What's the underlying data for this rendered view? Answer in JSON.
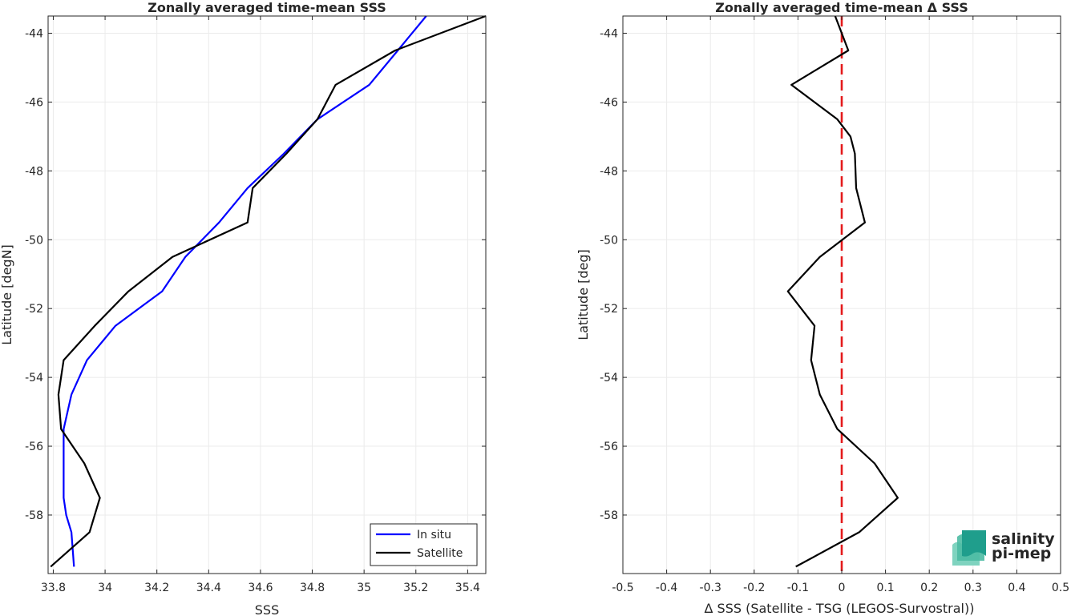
{
  "chart_data": [
    {
      "type": "line",
      "title": "Zonally averaged time-mean SSS",
      "xlabel": "SSS",
      "ylabel": "Latitude [degN]",
      "xlim": [
        33.78,
        35.47
      ],
      "ylim": [
        -59.7,
        -43.5
      ],
      "xticks": [
        33.8,
        34,
        34.2,
        34.4,
        34.6,
        34.8,
        35,
        35.2,
        35.4
      ],
      "xtick_labels": [
        "33.8",
        "34",
        "34.2",
        "34.4",
        "34.6",
        "34.8",
        "35",
        "35.2",
        "35.4"
      ],
      "yticks": [
        -58,
        -56,
        -54,
        -52,
        -50,
        -48,
        -46,
        -44
      ],
      "ytick_labels": [
        "-58",
        "-56",
        "-54",
        "-52",
        "-50",
        "-48",
        "-46",
        "-44"
      ],
      "grid": true,
      "legend_position": "bottom-right",
      "series": [
        {
          "name": "In situ",
          "color": "#0000ff",
          "x": [
            35.24,
            35.13,
            35.02,
            34.82,
            34.69,
            34.55,
            34.44,
            34.31,
            34.22,
            34.04,
            33.93,
            33.87,
            33.84,
            33.84,
            33.84,
            33.85,
            33.87,
            33.88
          ],
          "y": [
            -43.5,
            -44.5,
            -45.5,
            -46.5,
            -47.5,
            -48.5,
            -49.5,
            -50.5,
            -51.5,
            -52.5,
            -53.5,
            -54.5,
            -55.5,
            -56.5,
            -57.5,
            -58.0,
            -58.5,
            -59.5
          ]
        },
        {
          "name": "Satellite",
          "color": "#000000",
          "x": [
            35.47,
            35.12,
            34.89,
            34.82,
            34.7,
            34.57,
            34.55,
            34.26,
            34.09,
            33.96,
            33.84,
            33.82,
            33.83,
            33.92,
            33.98,
            33.94,
            33.79
          ],
          "y": [
            -43.5,
            -44.5,
            -45.5,
            -46.5,
            -47.5,
            -48.5,
            -49.5,
            -50.5,
            -51.5,
            -52.5,
            -53.5,
            -54.5,
            -55.5,
            -56.5,
            -57.5,
            -58.5,
            -59.5
          ]
        }
      ]
    },
    {
      "type": "line",
      "title": "Zonally averaged time-mean Δ SSS",
      "xlabel": "Δ SSS (Satellite - TSG (LEGOS-Survostral))",
      "ylabel": "Latitude [deg]",
      "xlim": [
        -0.5,
        0.5
      ],
      "ylim": [
        -59.7,
        -43.5
      ],
      "xticks": [
        -0.5,
        -0.4,
        -0.3,
        -0.2,
        -0.1,
        0,
        0.1,
        0.2,
        0.3,
        0.4,
        0.5
      ],
      "xtick_labels": [
        "-0.5",
        "-0.4",
        "-0.3",
        "-0.2",
        "-0.1",
        "0",
        "0.1",
        "0.2",
        "0.3",
        "0.4",
        "0.5"
      ],
      "yticks": [
        -58,
        -56,
        -54,
        -52,
        -50,
        -48,
        -46,
        -44
      ],
      "ytick_labels": [
        "-58",
        "-56",
        "-54",
        "-52",
        "-50",
        "-48",
        "-46",
        "-44"
      ],
      "grid": true,
      "reference_line": {
        "x": 0,
        "color": "#e41a1c",
        "style": "dashed"
      },
      "series": [
        {
          "color": "#000000",
          "x": [
            -0.015,
            0.015,
            -0.115,
            -0.01,
            0.02,
            0.03,
            0.033,
            0.053,
            -0.05,
            -0.123,
            -0.062,
            -0.07,
            -0.05,
            -0.01,
            0.075,
            0.128,
            0.04,
            -0.105
          ],
          "y": [
            -43.5,
            -44.5,
            -45.5,
            -46.5,
            -47.0,
            -47.5,
            -48.5,
            -49.5,
            -50.5,
            -51.5,
            -52.5,
            -53.5,
            -54.5,
            -55.5,
            -56.5,
            -57.5,
            -58.5,
            -59.5
          ]
        }
      ]
    }
  ],
  "logo": {
    "line1": "salinity",
    "line2": "pi-mep"
  }
}
